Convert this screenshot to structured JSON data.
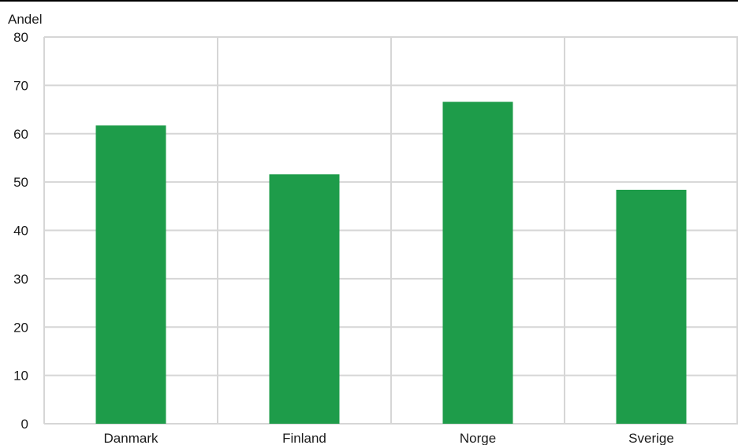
{
  "colors": {
    "bar": "#1e9c4a",
    "grid": "#d6d6d6",
    "text": "#1a1a1a"
  },
  "chart_data": {
    "type": "bar",
    "ylabel": "Andel",
    "categories": [
      "Danmark",
      "Finland",
      "Norge",
      "Sverige"
    ],
    "series": [
      {
        "values": [
          61.7,
          51.6,
          66.6,
          48.4
        ]
      }
    ],
    "ylim": [
      0,
      80
    ],
    "yticks": [
      0,
      10,
      20,
      30,
      40,
      50,
      60,
      70,
      80
    ],
    "grid": true,
    "legend": "none"
  }
}
